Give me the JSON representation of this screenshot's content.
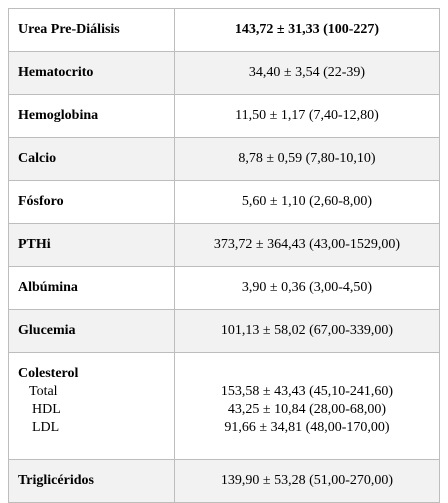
{
  "table": {
    "rows": [
      {
        "label": "Urea Pre-Diálisis",
        "value": "143,72 ± 31,33 (100-227)"
      },
      {
        "label": "Hematocrito",
        "value": "34,40 ± 3,54 (22-39)"
      },
      {
        "label": "Hemoglobina",
        "value": "11,50 ± 1,17 (7,40-12,80)"
      },
      {
        "label": "Calcio",
        "value": "8,78 ± 0,59 (7,80-10,10)"
      },
      {
        "label": "Fósforo",
        "value": "5,60 ± 1,10 (2,60-8,00)"
      },
      {
        "label": "PTHi",
        "value": "373,72 ± 364,43 (43,00-1529,00)"
      },
      {
        "label": "Albúmina",
        "value": "3,90 ± 0,36 (3,00-4,50)"
      },
      {
        "label": "Glucemia",
        "value": "101,13 ± 58,02 (67,00-339,00)"
      },
      {
        "label": "Colesterol",
        "sub": [
          {
            "label": "Total",
            "value": "153,58 ± 43,43 (45,10-241,60)"
          },
          {
            "label": "HDL",
            "value": "43,25 ± 10,84 (28,00-68,00)"
          },
          {
            "label": "LDL",
            "value": "91,66 ± 34,81 (48,00-170,00)"
          }
        ]
      },
      {
        "label": "Triglicéridos",
        "value": "139,90 ± 53,28 (51,00-270,00)"
      }
    ]
  }
}
